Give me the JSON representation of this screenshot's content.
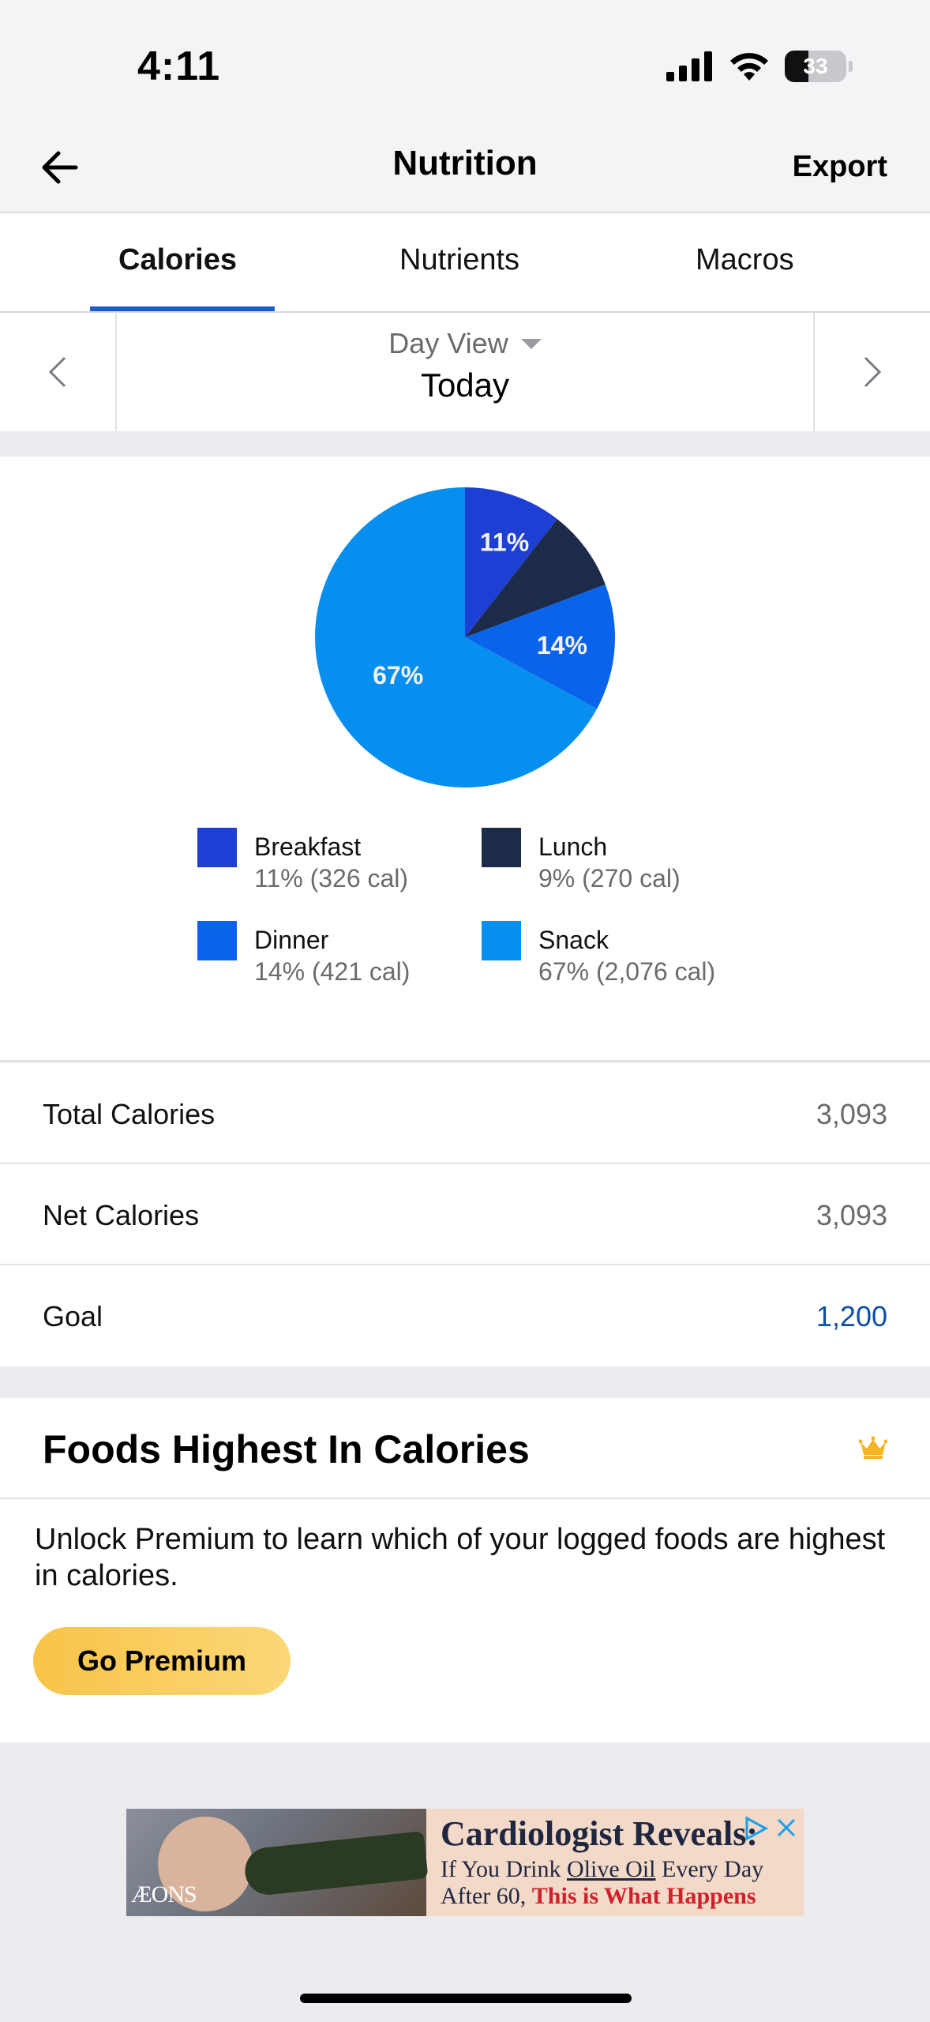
{
  "status_bar": {
    "time": "4:11",
    "battery": "33",
    "icons": [
      "signal-icon",
      "wifi-icon",
      "battery-icon"
    ]
  },
  "header": {
    "title": "Nutrition",
    "export_label": "Export",
    "back_icon": "back-arrow-icon"
  },
  "tabs": [
    {
      "label": "Calories",
      "active": true
    },
    {
      "label": "Nutrients",
      "active": false
    },
    {
      "label": "Macros",
      "active": false
    }
  ],
  "date_selector": {
    "view_label": "Day View",
    "date_label": "Today"
  },
  "chart_data": {
    "type": "pie",
    "labels": [
      "Breakfast",
      "Lunch",
      "Dinner",
      "Snack"
    ],
    "values": [
      326,
      270,
      421,
      2076
    ],
    "percent_labels": [
      "11%",
      "",
      "14%",
      "67%"
    ],
    "colors": [
      "#1e3fd4",
      "#1c2b4a",
      "#0a63eb",
      "#078ff0"
    ]
  },
  "legend": [
    {
      "name": "Breakfast",
      "value": "11% (326 cal)",
      "color": "#1e3fd4"
    },
    {
      "name": "Lunch",
      "value": "9% (270 cal)",
      "color": "#1c2b4a"
    },
    {
      "name": "Dinner",
      "value": "14% (421 cal)",
      "color": "#0a63eb"
    },
    {
      "name": "Snack",
      "value": "67% (2,076 cal)",
      "color": "#078ff0"
    }
  ],
  "summary": {
    "total_label": "Total Calories",
    "total_value": "3,093",
    "net_label": "Net Calories",
    "net_value": "3,093",
    "goal_label": "Goal",
    "goal_value": "1,200"
  },
  "foods_highest": {
    "title": "Foods Highest In Calories",
    "description": "Unlock Premium to learn which of your logged foods are highest in calories.",
    "button_label": "Go Premium",
    "icon": "crown-icon"
  },
  "ad": {
    "brand": "ÆONS",
    "headline": "Cardiologist Reveals:",
    "line2_prefix": "If You Drink ",
    "line2_underlined": "Olive Oil",
    "line2_suffix": " Every Day",
    "line3_prefix": "After 60, ",
    "line3_highlight": "This is What Happens"
  }
}
